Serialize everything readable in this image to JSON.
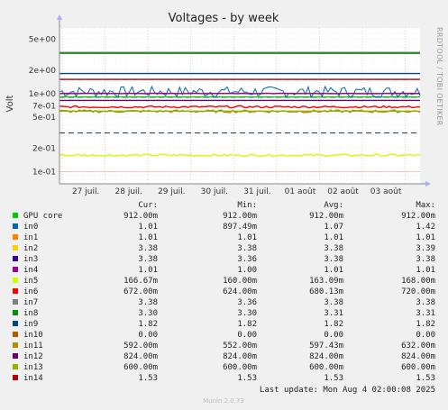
{
  "chart_data": {
    "type": "line",
    "title": "Voltages - by week",
    "ylabel": "Volt",
    "yscale": "log",
    "ylim": [
      0.07,
      7.0
    ],
    "yticks": [
      {
        "value": 5.0,
        "label": "5e+00"
      },
      {
        "value": 2.0,
        "label": "2e+00"
      },
      {
        "value": 1.0,
        "label": "1e+00"
      },
      {
        "value": 0.7,
        "label": "7e-01"
      },
      {
        "value": 0.5,
        "label": "5e-01"
      },
      {
        "value": 0.2,
        "label": "2e-01"
      },
      {
        "value": 0.1,
        "label": "1e-01"
      }
    ],
    "xticks": [
      "27 juil.",
      "28 juil.",
      "29 juil.",
      "30 juil.",
      "31 juil.",
      "01 août",
      "02 août",
      "03 août"
    ],
    "grid": true,
    "columns": [
      "Cur:",
      "Min:",
      "Avg:",
      "Max:"
    ],
    "series": [
      {
        "name": "GPU core",
        "color": "#00cc00",
        "style": "solid",
        "value": 0.912,
        "wiggle": 0,
        "cur": "912.00m",
        "min": "912.00m",
        "avg": "912.00m",
        "max": "912.00m"
      },
      {
        "name": "in0",
        "color": "#0066b3",
        "style": "solid",
        "value": 1.07,
        "wiggle": 0.16,
        "cur": "1.01",
        "min": "897.49m",
        "avg": "1.07",
        "max": "1.42"
      },
      {
        "name": "in1",
        "color": "#ff8000",
        "style": "solid",
        "value": 1.01,
        "wiggle": 0.005,
        "cur": "1.01",
        "min": "1.01",
        "avg": "1.01",
        "max": "1.01"
      },
      {
        "name": "in2",
        "color": "#ffcc00",
        "style": "solid",
        "value": 3.38,
        "wiggle": 0,
        "cur": "3.38",
        "min": "3.38",
        "avg": "3.38",
        "max": "3.39"
      },
      {
        "name": "in3",
        "color": "#330099",
        "style": "solid",
        "value": 3.38,
        "wiggle": 0,
        "cur": "3.38",
        "min": "3.36",
        "avg": "3.38",
        "max": "3.38"
      },
      {
        "name": "in4",
        "color": "#990099",
        "style": "solid",
        "value": 1.01,
        "wiggle": 0.005,
        "cur": "1.01",
        "min": "1.00",
        "avg": "1.01",
        "max": "1.01"
      },
      {
        "name": "in5",
        "color": "#ccff00",
        "style": "solid",
        "value": 0.163,
        "wiggle": 0.03,
        "cur": "166.67m",
        "min": "160.00m",
        "avg": "163.09m",
        "max": "168.00m"
      },
      {
        "name": "in6",
        "color": "#ff0000",
        "style": "solid",
        "value": 0.68,
        "wiggle": 0.03,
        "cur": "672.00m",
        "min": "624.00m",
        "avg": "680.13m",
        "max": "720.00m"
      },
      {
        "name": "in7",
        "color": "#808080",
        "style": "solid",
        "value": 3.38,
        "wiggle": 0,
        "cur": "3.38",
        "min": "3.36",
        "avg": "3.38",
        "max": "3.38"
      },
      {
        "name": "in8",
        "color": "#008f00",
        "style": "solid",
        "value": 3.3,
        "wiggle": 0,
        "cur": "3.30",
        "min": "3.30",
        "avg": "3.31",
        "max": "3.31"
      },
      {
        "name": "in9",
        "color": "#00487d",
        "style": "solid",
        "value": 1.82,
        "wiggle": 0,
        "cur": "1.82",
        "min": "1.82",
        "avg": "1.82",
        "max": "1.82"
      },
      {
        "name": "in10",
        "color": "#b35a00",
        "style": "solid",
        "value": 0,
        "wiggle": 0,
        "cur": "0.00",
        "min": "0.00",
        "avg": "0.00",
        "max": "0.00"
      },
      {
        "name": "in11",
        "color": "#b38f00",
        "style": "solid",
        "value": 0.597,
        "wiggle": 0.04,
        "cur": "592.00m",
        "min": "552.00m",
        "avg": "597.43m",
        "max": "632.00m"
      },
      {
        "name": "in12",
        "color": "#6b006b",
        "style": "solid",
        "value": 0.824,
        "wiggle": 0,
        "cur": "824.00m",
        "min": "824.00m",
        "avg": "824.00m",
        "max": "824.00m"
      },
      {
        "name": "in13",
        "color": "#8fb300",
        "style": "solid",
        "value": 0.6,
        "wiggle": 0,
        "cur": "600.00m",
        "min": "600.00m",
        "avg": "600.00m",
        "max": "600.00m"
      },
      {
        "name": "in14",
        "color": "#b30000",
        "style": "solid",
        "value": 1.53,
        "wiggle": 0,
        "cur": "1.53",
        "min": "1.53",
        "avg": "1.53",
        "max": "1.53"
      }
    ],
    "limit_lines": [
      {
        "value": 1.53,
        "color": "#1a3b6e"
      },
      {
        "value": 0.9,
        "color": "#1a3b6e"
      },
      {
        "value": 0.315,
        "color": "#1a3b6e"
      }
    ]
  },
  "footer": {
    "last_update": "Last update: Mon Aug  4 02:00:08 2025",
    "watermark": "RRDTOOL / TOBI OETIKER",
    "munin": "Munin 2.0.73"
  }
}
